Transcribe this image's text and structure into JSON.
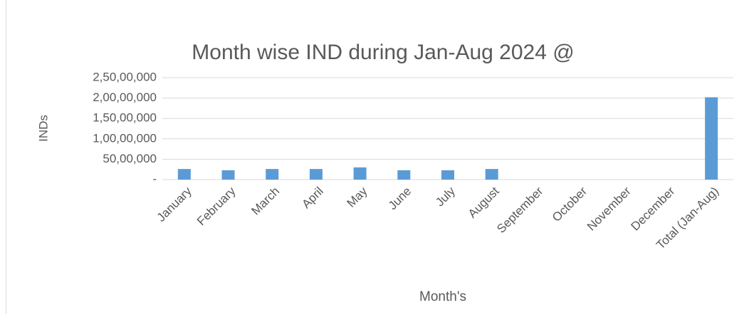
{
  "chart_data": {
    "type": "bar",
    "title": "Month wise IND during Jan-Aug 2024 @",
    "x_label": "Month's",
    "y_label": "INDs",
    "categories": [
      "January",
      "February",
      "March",
      "April",
      "May",
      "June",
      "July",
      "August",
      "September",
      "October",
      "November",
      "December",
      "Total (Jan-Aug)"
    ],
    "values": [
      2600000,
      2300000,
      2600000,
      2600000,
      3000000,
      2300000,
      2300000,
      2600000,
      null,
      null,
      null,
      null,
      20200000
    ],
    "color": "#5b9bd5",
    "ylim": [
      0,
      25000000
    ],
    "yticks": [
      {
        "value": 0,
        "label": "-"
      },
      {
        "value": 5000000,
        "label": "50,00,000"
      },
      {
        "value": 10000000,
        "label": "1,00,00,000"
      },
      {
        "value": 15000000,
        "label": "1,50,00,000"
      },
      {
        "value": 20000000,
        "label": "2,00,00,000"
      },
      {
        "value": 25000000,
        "label": "2,50,00,000"
      }
    ],
    "grid": true
  }
}
